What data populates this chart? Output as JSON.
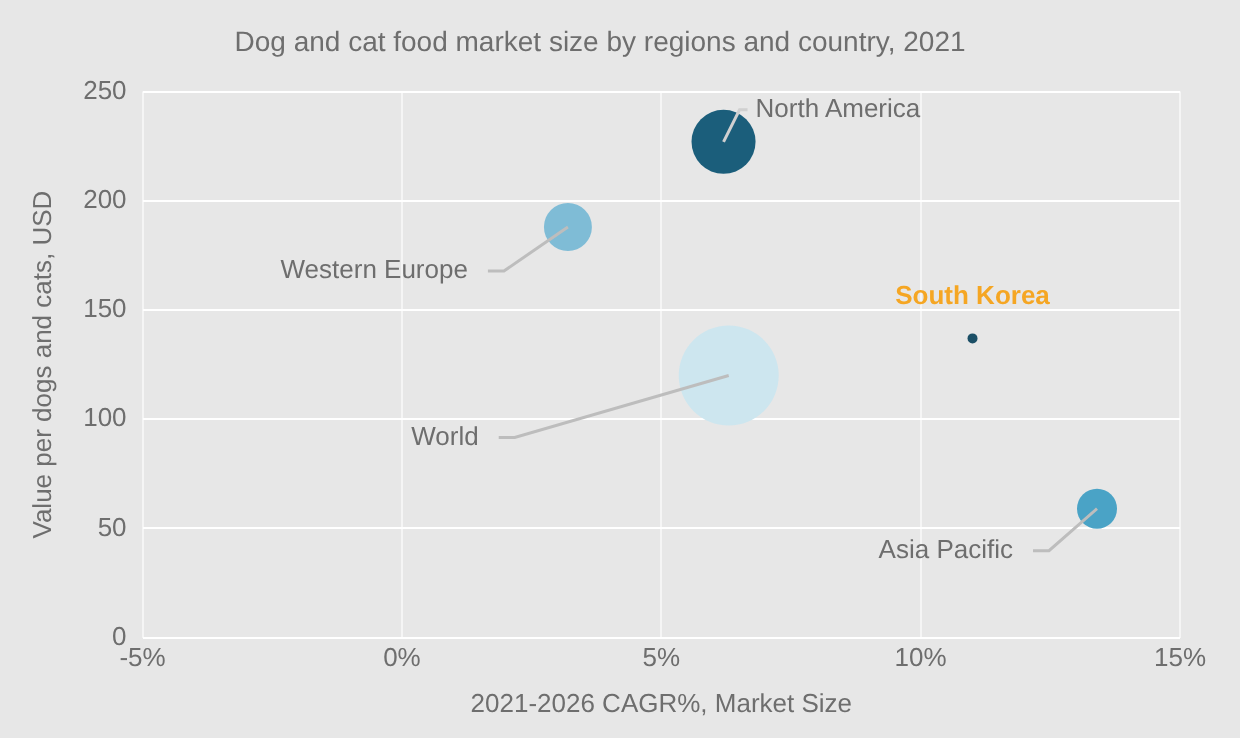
{
  "chart_data": {
    "type": "bubble",
    "title": "Dog and cat food market size by regions and country, 2021",
    "xlabel": "2021-2026 CAGR%, Market Size",
    "ylabel": "Value per dogs and cats, USD",
    "xlim": [
      -5,
      15
    ],
    "xticks": [
      {
        "value": -5,
        "label": "-5%"
      },
      {
        "value": 0,
        "label": "0%"
      },
      {
        "value": 5,
        "label": "5%"
      },
      {
        "value": 10,
        "label": "10%"
      },
      {
        "value": 15,
        "label": "15%"
      }
    ],
    "ylim": [
      0,
      250
    ],
    "yticks": [
      0,
      50,
      100,
      150,
      200,
      250
    ],
    "grid": true,
    "legend": false,
    "series": [
      {
        "name": "North America",
        "color": "#1b5e7b",
        "x": [
          6.2
        ],
        "values": [
          227
        ],
        "sizes": [
          0.41
        ]
      },
      {
        "name": "Western Europe",
        "color": "#7fbcd6",
        "x": [
          3.2
        ],
        "values": [
          188
        ],
        "sizes": [
          0.23
        ]
      },
      {
        "name": "World",
        "color": "#cde6ef",
        "x": [
          6.3
        ],
        "values": [
          120
        ],
        "sizes": [
          1
        ]
      },
      {
        "name": "South Korea",
        "color": "#1b4f66",
        "x": [
          11.0
        ],
        "values": [
          137
        ],
        "sizes": [
          0.01
        ]
      },
      {
        "name": "Asia Pacific",
        "color": "#4aa3c6",
        "x": [
          13.4
        ],
        "values": [
          59
        ],
        "sizes": [
          0.16
        ]
      }
    ]
  }
}
